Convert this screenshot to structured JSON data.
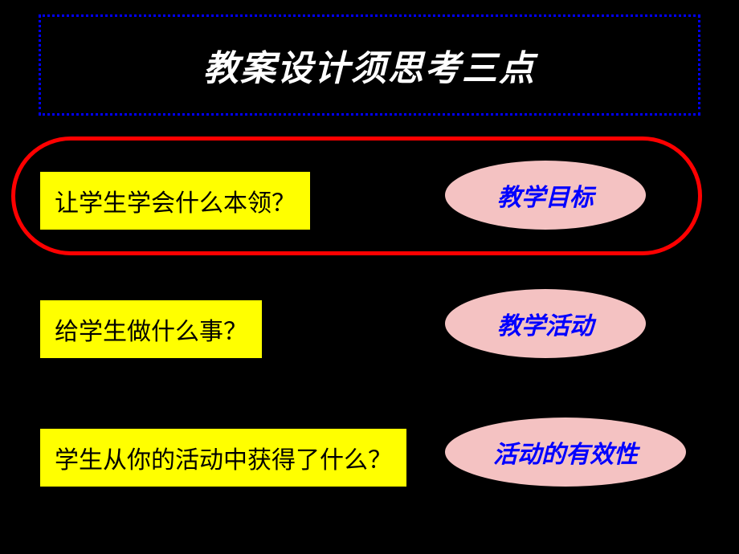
{
  "title": "教案设计须思考三点",
  "rows": [
    {
      "question": "让学生学会什么本领？",
      "answer": "教学目标"
    },
    {
      "question": "给学生做什么事？",
      "answer": "教学活动"
    },
    {
      "question": "学生从你的活动中获得了什么？",
      "answer": "活动的有效性"
    }
  ],
  "style": {
    "background_color": "#000000",
    "title_border_color": "#0000ff",
    "title_border_style": "dotted",
    "title_text_color": "#ffffff",
    "title_fontsize": 44,
    "ring_color": "#ff0000",
    "ring_border_width": 5,
    "question_bg": "#ffff00",
    "question_text_color": "#000000",
    "question_fontsize": 30,
    "answer_bg": "#f4c2c2",
    "answer_text_color": "#0000ff",
    "answer_fontsize": 30,
    "answer_font_style": "italic"
  }
}
